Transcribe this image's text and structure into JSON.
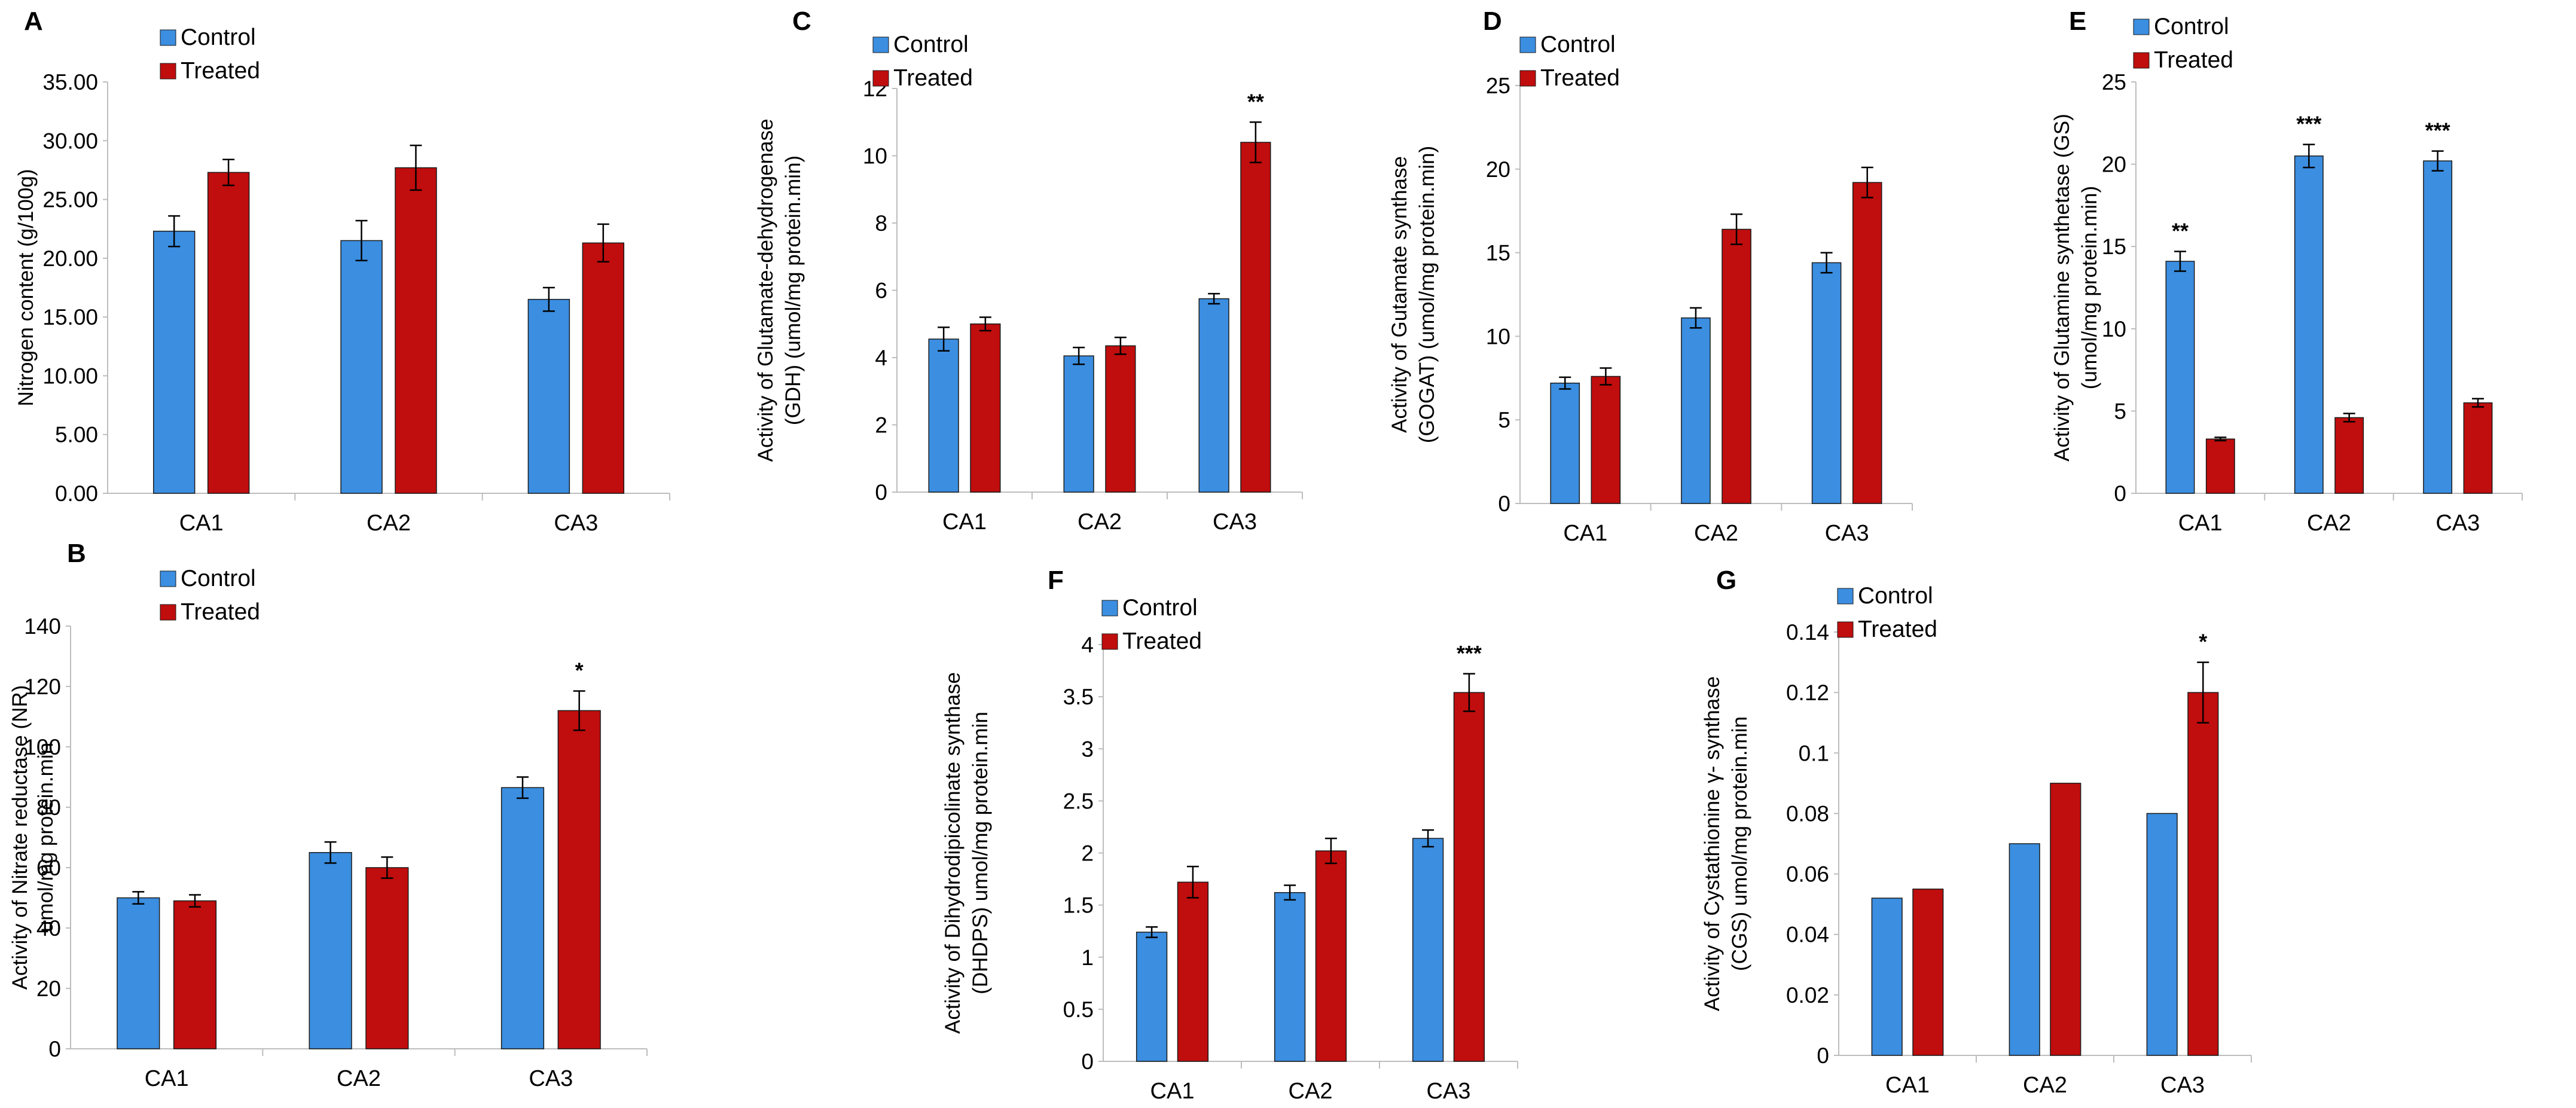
{
  "colors": {
    "control": "#3b8ee0",
    "treated": "#c00d0d",
    "axis": "#bdbdbd",
    "text": "#000000"
  },
  "legend": {
    "control": "Control",
    "treated": "Treated"
  },
  "chart_data": [
    {
      "id": "A",
      "panel": "A",
      "type": "bar",
      "categories": [
        "CA1",
        "CA2",
        "CA3"
      ],
      "series": [
        {
          "name": "Control",
          "values": [
            22.3,
            21.5,
            16.5
          ],
          "errors": [
            1.3,
            1.7,
            1.0
          ]
        },
        {
          "name": "Treated",
          "values": [
            27.3,
            27.7,
            21.3
          ],
          "errors": [
            1.1,
            1.9,
            1.6
          ]
        }
      ],
      "ylim": [
        0,
        35
      ],
      "yticks": [
        0,
        5,
        10,
        15,
        20,
        25,
        30,
        35
      ],
      "ytick_labels": [
        "0.00",
        "5.00",
        "10.00",
        "15.00",
        "20.00",
        "25.00",
        "30.00",
        "35.00"
      ],
      "ylabel_lines": [
        "Nitrogen content (g/100g)"
      ],
      "significance": [
        "",
        "",
        ""
      ],
      "legend_position": "top-left"
    },
    {
      "id": "B",
      "panel": "B",
      "type": "bar",
      "categories": [
        "CA1",
        "CA2",
        "CA3"
      ],
      "series": [
        {
          "name": "Control",
          "values": [
            50,
            65,
            86.5
          ],
          "errors": [
            2,
            3.5,
            3.5
          ]
        },
        {
          "name": "Treated",
          "values": [
            49,
            60,
            112
          ],
          "errors": [
            2,
            3.5,
            6.5
          ]
        }
      ],
      "ylim": [
        0,
        140
      ],
      "yticks": [
        0,
        20,
        40,
        60,
        80,
        100,
        120,
        140
      ],
      "ytick_labels": [
        "0",
        "20",
        "40",
        "60",
        "80",
        "100",
        "120",
        "140"
      ],
      "ylabel_lines": [
        "Activity of Nitrate reductase (NR)",
        "umol/mg protein.min"
      ],
      "significance": [
        "",
        "",
        "*"
      ],
      "legend_position": "top-left"
    },
    {
      "id": "C",
      "panel": "C",
      "type": "bar",
      "categories": [
        "CA1",
        "CA2",
        "CA3"
      ],
      "series": [
        {
          "name": "Control",
          "values": [
            4.55,
            4.05,
            5.75
          ],
          "errors": [
            0.35,
            0.25,
            0.15
          ]
        },
        {
          "name": "Treated",
          "values": [
            5.0,
            4.35,
            10.4
          ],
          "errors": [
            0.2,
            0.25,
            0.6
          ]
        }
      ],
      "ylim": [
        0,
        12
      ],
      "yticks": [
        0,
        2,
        4,
        6,
        8,
        10,
        12
      ],
      "ytick_labels": [
        "0",
        "2",
        "4",
        "6",
        "8",
        "10",
        "12"
      ],
      "ylabel_lines": [
        "Activity of Glutamate-dehydrogenase",
        "(GDH) (umol/mg protein.min)"
      ],
      "significance": [
        "",
        "",
        "**"
      ],
      "legend_position": "top-left"
    },
    {
      "id": "D",
      "panel": "D",
      "type": "bar",
      "categories": [
        "CA1",
        "CA2",
        "CA3"
      ],
      "series": [
        {
          "name": "Control",
          "values": [
            7.2,
            11.1,
            14.4
          ],
          "errors": [
            0.35,
            0.6,
            0.6
          ]
        },
        {
          "name": "Treated",
          "values": [
            7.6,
            16.4,
            19.2
          ],
          "errors": [
            0.5,
            0.9,
            0.9
          ]
        }
      ],
      "ylim": [
        0,
        25
      ],
      "yticks": [
        0,
        5,
        10,
        15,
        20,
        25
      ],
      "ytick_labels": [
        "0",
        "5",
        "10",
        "15",
        "20",
        "25"
      ],
      "ylabel_lines": [
        "Activity of Gutamate synthase",
        "(GOGAT) (umol/mg protein.min)"
      ],
      "significance": [
        "",
        "",
        ""
      ],
      "legend_position": "top-left"
    },
    {
      "id": "E",
      "panel": "E",
      "type": "bar",
      "categories": [
        "CA1",
        "CA2",
        "CA3"
      ],
      "series": [
        {
          "name": "Control",
          "values": [
            14.1,
            20.5,
            20.2
          ],
          "errors": [
            0.6,
            0.7,
            0.6
          ]
        },
        {
          "name": "Treated",
          "values": [
            3.3,
            4.6,
            5.5
          ],
          "errors": [
            0.1,
            0.25,
            0.25
          ]
        }
      ],
      "ylim": [
        0,
        25
      ],
      "yticks": [
        0,
        5,
        10,
        15,
        20,
        25
      ],
      "ytick_labels": [
        "0",
        "5",
        "10",
        "15",
        "20",
        "25"
      ],
      "ylabel_lines": [
        "Activity of Glutamine synthetase (GS)",
        "(umol/mg protein.min)"
      ],
      "significance": [
        "**",
        "***",
        "***"
      ],
      "significance_series": "Control",
      "legend_position": "top-left"
    },
    {
      "id": "F",
      "panel": "F",
      "type": "bar",
      "categories": [
        "CA1",
        "CA2",
        "CA3"
      ],
      "series": [
        {
          "name": "Control",
          "values": [
            1.24,
            1.62,
            2.14
          ],
          "errors": [
            0.05,
            0.07,
            0.08
          ]
        },
        {
          "name": "Treated",
          "values": [
            1.72,
            2.02,
            3.54
          ],
          "errors": [
            0.15,
            0.12,
            0.18
          ]
        }
      ],
      "ylim": [
        0,
        4
      ],
      "yticks": [
        0,
        0.5,
        1,
        1.5,
        2,
        2.5,
        3,
        3.5,
        4
      ],
      "ytick_labels": [
        "0",
        "0.5",
        "1",
        "1.5",
        "2",
        "2.5",
        "3",
        "3.5",
        "4"
      ],
      "ylabel_lines": [
        "Activity of Dihydrodipicolinate synthase",
        "(DHDPS) umol/mg protein.min"
      ],
      "significance": [
        "",
        "",
        "***"
      ],
      "legend_position": "top-left"
    },
    {
      "id": "G",
      "panel": "G",
      "type": "bar",
      "categories": [
        "CA1",
        "CA2",
        "CA3"
      ],
      "series": [
        {
          "name": "Control",
          "values": [
            0.052,
            0.07,
            0.08
          ],
          "errors": [
            0,
            0,
            0
          ]
        },
        {
          "name": "Treated",
          "values": [
            0.055,
            0.09,
            0.12
          ],
          "errors": [
            0,
            0,
            0.01
          ]
        }
      ],
      "ylim": [
        0,
        0.14
      ],
      "yticks": [
        0,
        0.02,
        0.04,
        0.06,
        0.08,
        0.1,
        0.12,
        0.14
      ],
      "ytick_labels": [
        "0",
        "0.02",
        "0.04",
        "0.06",
        "0.08",
        "0.1",
        "0.12",
        "0.14"
      ],
      "ylabel_lines": [
        "Activity of Cystathionine γ- synthase",
        "(CGS) umol/mg protein.min"
      ],
      "significance": [
        "",
        "",
        "*"
      ],
      "legend_position": "top-left"
    }
  ]
}
